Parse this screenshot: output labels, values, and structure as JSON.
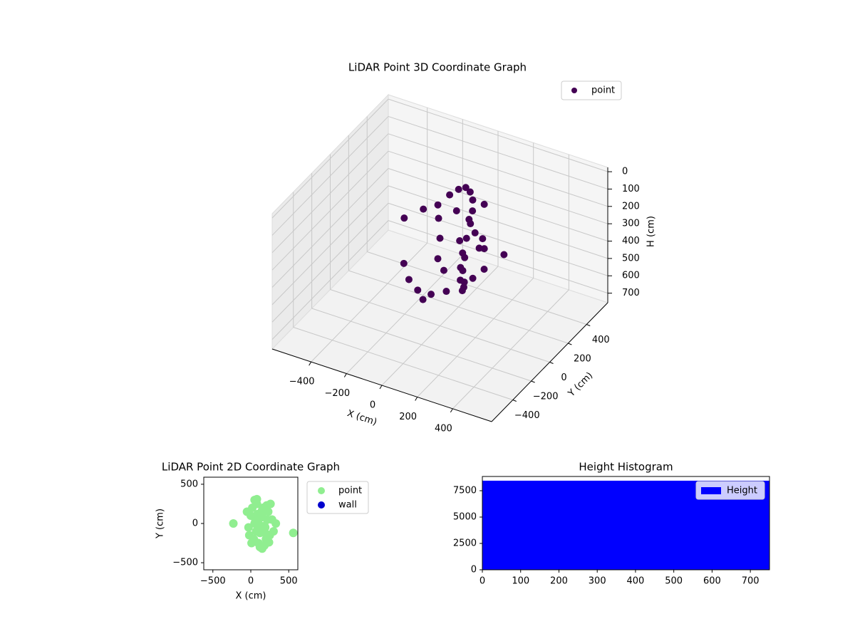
{
  "chart_data": [
    {
      "type": "scatter3d",
      "title": "LiDAR Point 3D Coordinate Graph",
      "x_label": "X (cm)",
      "y_label": "Y (cm)",
      "z_label": "H (cm)",
      "xlim": [
        -620,
        620
      ],
      "ylim": [
        -630,
        630
      ],
      "zlim": [
        -25,
        755
      ],
      "z_inverted": true,
      "grid": true,
      "xticks": [
        {
          "value": -400,
          "label": "−400"
        },
        {
          "value": -200,
          "label": "−200"
        },
        0,
        200,
        400
      ],
      "yticks": [
        {
          "value": -400,
          "label": "−400"
        },
        {
          "value": -200,
          "label": "−200"
        },
        0,
        200,
        400
      ],
      "zticks": [
        0,
        100,
        200,
        300,
        400,
        500,
        600,
        700
      ],
      "legend": "upper right",
      "series": [
        {
          "name": "point",
          "color": "#440154",
          "x": [
            -150,
            -120,
            -90,
            -60,
            -30,
            0,
            30,
            60,
            90,
            120,
            150,
            180,
            210,
            240,
            270,
            300,
            -100,
            -40,
            20,
            80,
            140,
            200,
            260,
            320,
            -60,
            0,
            60,
            120,
            180,
            240,
            40,
            100,
            160,
            220,
            0,
            80,
            150,
            220,
            120,
            60
          ],
          "y": [
            -100,
            50,
            150,
            220,
            260,
            280,
            270,
            240,
            180,
            100,
            0,
            -100,
            -180,
            -240,
            -260,
            -220,
            -200,
            -260,
            -280,
            -250,
            -200,
            -120,
            -20,
            80,
            100,
            180,
            200,
            150,
            80,
            20,
            -100,
            -150,
            -60,
            40,
            0,
            60,
            -20,
            -180,
            250,
            -300
          ],
          "z": [
            130,
            150,
            170,
            140,
            120,
            110,
            120,
            140,
            160,
            180,
            200,
            220,
            250,
            280,
            300,
            260,
            320,
            360,
            390,
            410,
            400,
            370,
            330,
            280,
            210,
            190,
            230,
            260,
            290,
            240,
            300,
            320,
            350,
            200,
            250,
            270,
            300,
            380,
            150,
            420
          ]
        }
      ]
    },
    {
      "type": "scatter",
      "title": "LiDAR Point 2D Coordinate Graph",
      "x_label": "X (cm)",
      "y_label": "Y (cm)",
      "xlim": [
        -620,
        620
      ],
      "ylim": [
        -590,
        590
      ],
      "xticks": [
        {
          "value": -500,
          "label": "−500"
        },
        0,
        500
      ],
      "yticks": [
        {
          "value": -500,
          "label": "−500"
        },
        0,
        500
      ],
      "legend": "outside right",
      "series": [
        {
          "name": "point",
          "color": "#90ee90",
          "x": [
            -230,
            -50,
            -30,
            0,
            20,
            50,
            80,
            100,
            120,
            150,
            180,
            200,
            230,
            260,
            280,
            300,
            330,
            -20,
            10,
            40,
            70,
            100,
            130,
            160,
            190,
            220,
            250,
            60,
            90,
            120,
            150,
            180,
            210,
            240,
            50,
            100,
            150,
            200,
            80,
            560
          ],
          "y": [
            0,
            150,
            -50,
            100,
            200,
            300,
            250,
            -250,
            -300,
            -320,
            -280,
            -200,
            150,
            250,
            50,
            -100,
            0,
            -150,
            -250,
            -200,
            -100,
            0,
            100,
            200,
            -50,
            50,
            -150,
            50,
            120,
            -120,
            80,
            -30,
            230,
            -240,
            0,
            -70,
            170,
            -130,
            310,
            -120
          ]
        },
        {
          "name": "wall",
          "color": "#0000cd",
          "x": [],
          "y": []
        }
      ]
    },
    {
      "type": "histogram",
      "title": "Height Histogram",
      "bins": [
        0,
        750
      ],
      "counts": [
        8450
      ],
      "series_name": "Height",
      "color": "#0000ff",
      "xlim": [
        0,
        750
      ],
      "ylim": [
        0,
        8850
      ],
      "xticks": [
        0,
        100,
        200,
        300,
        400,
        500,
        600,
        700
      ],
      "yticks": [
        0,
        2500,
        5000,
        7500
      ],
      "legend": "upper right"
    }
  ]
}
